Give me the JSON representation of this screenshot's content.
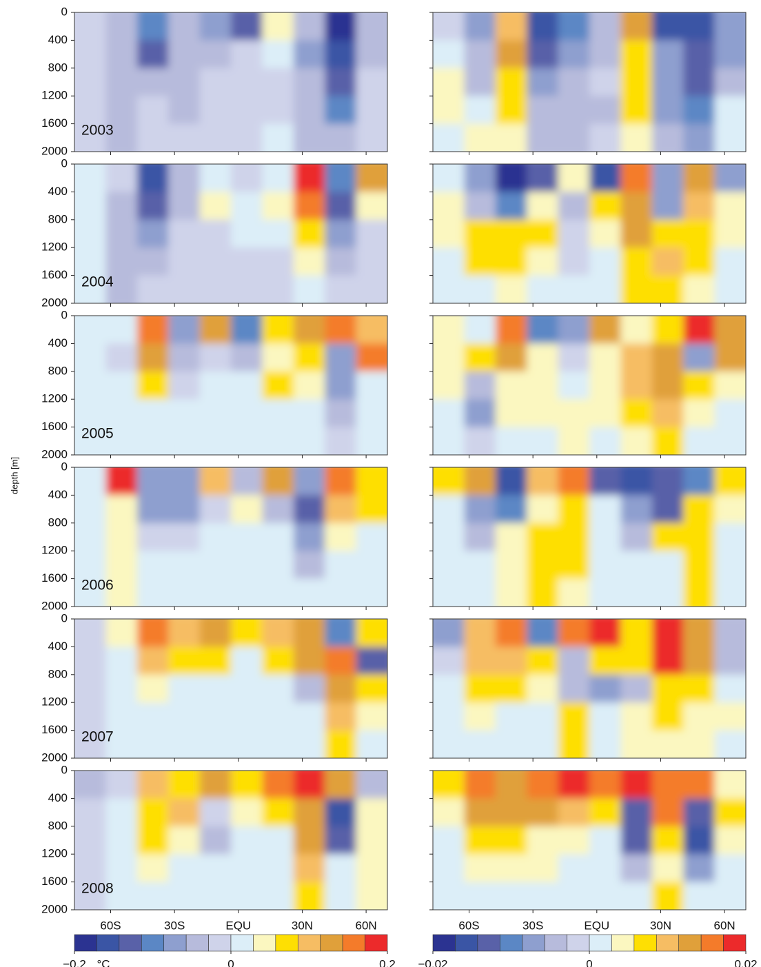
{
  "chart_data": [
    {
      "type": "heatmap",
      "ylabel": "depth [m]",
      "xlim": [
        -77,
        70
      ],
      "xticks": [
        {
          "value": -60,
          "label": "60S"
        },
        {
          "value": -30,
          "label": "30S"
        },
        {
          "value": 0,
          "label": "EQU"
        },
        {
          "value": 30,
          "label": "30N"
        },
        {
          "value": 60,
          "label": "60N"
        }
      ],
      "ylim": [
        2000,
        0
      ],
      "yticks": [
        0,
        400,
        800,
        1200,
        1600,
        2000
      ],
      "colorbar": {
        "lim": [
          -0.2,
          0.2
        ],
        "unit": "°C",
        "ticks": [
          {
            "value": -0.2,
            "label": "−0.2"
          },
          0,
          0.2
        ],
        "colors": [
          "#2b3391",
          "#3a55a5",
          "#5961a8",
          "#5b87c5",
          "#8e9fcf",
          "#b7bbdc",
          "#cfd3ea",
          "#dceef8",
          "#fbf7c0",
          "#fedf03",
          "#f6bd63",
          "#e0a03a",
          "#f47b2a",
          "#ec2a2b"
        ]
      },
      "panels": [
        {
          "label": "2003",
          "values": [
            [
              -0.01,
              -0.03,
              -0.1,
              -0.05,
              -0.08,
              -0.12,
              0.03,
              -0.05,
              -0.18,
              -0.04
            ],
            [
              -0.01,
              -0.05,
              -0.12,
              -0.05,
              -0.04,
              -0.02,
              0.01,
              -0.06,
              -0.17,
              -0.03
            ],
            [
              -0.01,
              -0.04,
              -0.05,
              -0.05,
              -0.02,
              -0.01,
              -0.01,
              -0.04,
              -0.12,
              -0.02
            ],
            [
              -0.01,
              -0.04,
              -0.02,
              -0.03,
              -0.01,
              -0.01,
              -0.01,
              -0.03,
              -0.1,
              -0.01
            ],
            [
              -0.01,
              -0.03,
              -0.01,
              -0.01,
              -0.01,
              -0.01,
              0.01,
              -0.03,
              -0.04,
              -0.01
            ]
          ]
        },
        {
          "label": "2004",
          "values": [
            [
              0.02,
              -0.01,
              -0.15,
              -0.04,
              0.01,
              -0.02,
              0.02,
              0.18,
              -0.1,
              0.12
            ],
            [
              0.01,
              -0.04,
              -0.12,
              -0.04,
              0.03,
              0.01,
              0.04,
              0.15,
              -0.14,
              0.04
            ],
            [
              0.01,
              -0.05,
              -0.06,
              -0.02,
              -0.01,
              0.01,
              0.02,
              0.08,
              -0.06,
              -0.02
            ],
            [
              0.01,
              -0.05,
              -0.03,
              -0.01,
              -0.01,
              -0.01,
              -0.01,
              0.05,
              -0.04,
              -0.02
            ],
            [
              0.01,
              -0.04,
              -0.02,
              -0.01,
              -0.01,
              -0.01,
              -0.01,
              0.01,
              -0.02,
              -0.01
            ]
          ]
        },
        {
          "label": "2005",
          "values": [
            [
              0.02,
              0.01,
              0.16,
              -0.06,
              0.12,
              -0.1,
              0.06,
              0.12,
              0.15,
              0.1
            ],
            [
              0.01,
              -0.02,
              0.14,
              -0.04,
              -0.02,
              -0.05,
              0.04,
              0.06,
              -0.06,
              0.16
            ],
            [
              0.01,
              0.01,
              0.06,
              -0.02,
              0.01,
              0.01,
              0.06,
              0.04,
              -0.08,
              0.02
            ],
            [
              0.01,
              0.01,
              0.02,
              0.01,
              0.01,
              0.01,
              0.01,
              0.02,
              -0.03,
              0.01
            ],
            [
              0.01,
              0.01,
              0.01,
              0.01,
              0.01,
              0.01,
              0.01,
              0.01,
              -0.02,
              0.01
            ]
          ]
        },
        {
          "label": "2006",
          "values": [
            [
              0.02,
              0.18,
              -0.08,
              -0.06,
              0.1,
              -0.04,
              0.12,
              -0.08,
              0.16,
              0.08
            ],
            [
              0.01,
              0.03,
              -0.08,
              -0.06,
              -0.02,
              0.04,
              -0.04,
              -0.14,
              0.1,
              0.08
            ],
            [
              0.01,
              0.05,
              -0.02,
              -0.01,
              0.01,
              0.01,
              0.01,
              -0.08,
              0.04,
              0.01
            ],
            [
              0.01,
              0.04,
              0.01,
              0.01,
              0.01,
              0.01,
              0.01,
              -0.03,
              0.01,
              0.01
            ],
            [
              0.01,
              0.03,
              0.01,
              0.01,
              0.01,
              0.01,
              0.01,
              0.01,
              0.01,
              0.01
            ]
          ]
        },
        {
          "label": "2007",
          "values": [
            [
              -0.02,
              0.04,
              0.16,
              0.1,
              0.12,
              0.06,
              0.1,
              0.12,
              -0.1,
              0.08
            ],
            [
              -0.01,
              0.02,
              0.1,
              0.08,
              0.06,
              0.02,
              0.06,
              0.12,
              0.16,
              -0.12
            ],
            [
              -0.01,
              0.01,
              0.04,
              0.02,
              0.01,
              0.01,
              0.02,
              -0.04,
              0.14,
              0.06
            ],
            [
              -0.01,
              0.01,
              0.01,
              0.01,
              0.01,
              0.01,
              0.01,
              0.01,
              0.1,
              0.04
            ],
            [
              -0.01,
              0.01,
              0.01,
              0.01,
              0.01,
              0.01,
              0.01,
              0.01,
              0.08,
              0.01
            ]
          ]
        },
        {
          "label": "2008",
          "values": [
            [
              -0.04,
              -0.02,
              0.1,
              0.08,
              0.12,
              0.08,
              0.16,
              0.18,
              0.12,
              -0.04
            ],
            [
              -0.02,
              0.01,
              0.08,
              0.1,
              -0.02,
              0.04,
              0.08,
              0.14,
              -0.16,
              0.04
            ],
            [
              -0.01,
              0.01,
              0.06,
              0.04,
              -0.04,
              0.01,
              0.02,
              0.12,
              -0.12,
              0.04
            ],
            [
              -0.01,
              0.01,
              0.04,
              0.01,
              0.01,
              0.01,
              0.01,
              0.1,
              0.01,
              0.04
            ],
            [
              -0.01,
              0.01,
              0.01,
              0.01,
              0.01,
              0.01,
              0.01,
              0.06,
              0.01,
              0.04
            ]
          ]
        }
      ]
    },
    {
      "type": "heatmap",
      "xlim": [
        -77,
        70
      ],
      "xticks": [
        {
          "value": -60,
          "label": "60S"
        },
        {
          "value": -30,
          "label": "30S"
        },
        {
          "value": 0,
          "label": "EQU"
        },
        {
          "value": 30,
          "label": "30N"
        },
        {
          "value": 60,
          "label": "60N"
        }
      ],
      "ylim": [
        2000,
        0
      ],
      "yticks": [
        0,
        400,
        800,
        1200,
        1600,
        2000
      ],
      "colorbar": {
        "lim": [
          -0.02,
          0.02
        ],
        "ticks": [
          {
            "value": -0.02,
            "label": "−0.02"
          },
          0,
          0.02
        ],
        "colors": [
          "#2b3391",
          "#3a55a5",
          "#5961a8",
          "#5b87c5",
          "#8e9fcf",
          "#b7bbdc",
          "#cfd3ea",
          "#dceef8",
          "#fbf7c0",
          "#fedf03",
          "#f6bd63",
          "#e0a03a",
          "#f47b2a",
          "#ec2a2b"
        ]
      },
      "panels": [
        {
          "values": [
            [
              -0.002,
              -0.006,
              0.01,
              -0.016,
              -0.01,
              -0.004,
              0.012,
              -0.016,
              -0.016,
              -0.006
            ],
            [
              0.002,
              -0.004,
              0.012,
              -0.012,
              -0.006,
              -0.004,
              0.006,
              -0.006,
              -0.014,
              -0.008
            ],
            [
              0.004,
              -0.003,
              0.008,
              -0.006,
              -0.004,
              -0.002,
              0.008,
              -0.006,
              -0.012,
              -0.004
            ],
            [
              0.004,
              0.002,
              0.006,
              -0.004,
              -0.004,
              -0.004,
              0.006,
              -0.006,
              -0.01,
              0.002
            ],
            [
              0.002,
              0.004,
              0.004,
              -0.003,
              -0.004,
              -0.002,
              0.003,
              -0.004,
              -0.006,
              0.002
            ]
          ]
        },
        {
          "values": [
            [
              0.002,
              -0.006,
              -0.018,
              -0.012,
              0.004,
              -0.016,
              0.016,
              -0.006,
              0.014,
              -0.006
            ],
            [
              0.004,
              -0.004,
              -0.01,
              0.004,
              -0.004,
              0.006,
              0.014,
              -0.008,
              0.01,
              0.004
            ],
            [
              0.004,
              0.006,
              0.008,
              0.006,
              -0.002,
              0.004,
              0.012,
              0.008,
              0.008,
              0.004
            ],
            [
              0.002,
              0.006,
              0.006,
              0.004,
              -0.002,
              0.002,
              0.008,
              0.01,
              0.006,
              0.002
            ],
            [
              0.002,
              0.002,
              0.004,
              0.002,
              0.002,
              0.002,
              0.006,
              0.006,
              0.004,
              0.002
            ]
          ]
        },
        {
          "values": [
            [
              0.004,
              0.002,
              0.016,
              -0.01,
              -0.006,
              0.012,
              0.004,
              0.008,
              0.018,
              0.014
            ],
            [
              0.003,
              0.006,
              0.014,
              0.004,
              -0.002,
              0.004,
              0.01,
              0.014,
              -0.006,
              0.012
            ],
            [
              0.003,
              -0.004,
              0.004,
              0.004,
              0.002,
              0.004,
              0.01,
              0.012,
              0.006,
              0.004
            ],
            [
              0.002,
              -0.006,
              0.003,
              0.003,
              0.004,
              0.003,
              0.006,
              0.01,
              0.004,
              0.002
            ],
            [
              0.002,
              -0.002,
              0.002,
              0.002,
              0.003,
              0.002,
              0.004,
              0.008,
              0.002,
              0.002
            ]
          ]
        },
        {
          "values": [
            [
              0.006,
              0.014,
              -0.016,
              0.01,
              0.016,
              -0.014,
              -0.016,
              -0.014,
              -0.01,
              0.008
            ],
            [
              0.002,
              -0.008,
              -0.01,
              0.004,
              0.006,
              0.002,
              -0.006,
              -0.014,
              0.006,
              0.004
            ],
            [
              0.002,
              -0.004,
              0.004,
              0.008,
              0.006,
              0.002,
              -0.004,
              0.006,
              0.008,
              0.002
            ],
            [
              0.002,
              0.002,
              0.004,
              0.008,
              0.006,
              0.002,
              0.002,
              0.002,
              0.006,
              0.002
            ],
            [
              0.002,
              0.002,
              0.004,
              0.006,
              0.004,
              0.002,
              0.002,
              0.002,
              0.006,
              0.002
            ]
          ]
        },
        {
          "values": [
            [
              -0.006,
              0.01,
              0.016,
              -0.01,
              0.016,
              0.018,
              0.008,
              0.018,
              0.014,
              -0.004
            ],
            [
              -0.002,
              0.01,
              0.01,
              0.006,
              -0.004,
              0.006,
              0.006,
              0.018,
              0.012,
              -0.004
            ],
            [
              0.002,
              0.006,
              0.006,
              0.004,
              -0.004,
              -0.008,
              -0.004,
              0.008,
              0.006,
              0.002
            ],
            [
              0.002,
              0.004,
              0.002,
              0.002,
              0.006,
              0.002,
              0.004,
              0.008,
              0.004,
              0.004
            ],
            [
              0.002,
              0.002,
              0.002,
              0.002,
              0.006,
              0.002,
              0.004,
              0.004,
              0.004,
              0.002
            ]
          ]
        },
        {
          "values": [
            [
              0.006,
              0.016,
              0.012,
              0.016,
              0.018,
              0.016,
              0.018,
              0.016,
              0.016,
              0.004
            ],
            [
              0.004,
              0.012,
              0.014,
              0.014,
              0.01,
              0.006,
              -0.012,
              0.016,
              -0.012,
              0.006
            ],
            [
              0.002,
              0.008,
              0.006,
              0.004,
              0.004,
              0.002,
              -0.014,
              0.008,
              -0.016,
              0.004
            ],
            [
              0.002,
              0.004,
              0.004,
              0.004,
              0.002,
              0.002,
              -0.004,
              0.004,
              -0.006,
              0.002
            ],
            [
              0.002,
              0.002,
              0.002,
              0.002,
              0.002,
              0.002,
              0.002,
              0.006,
              0.002,
              0.002
            ]
          ]
        }
      ]
    }
  ]
}
